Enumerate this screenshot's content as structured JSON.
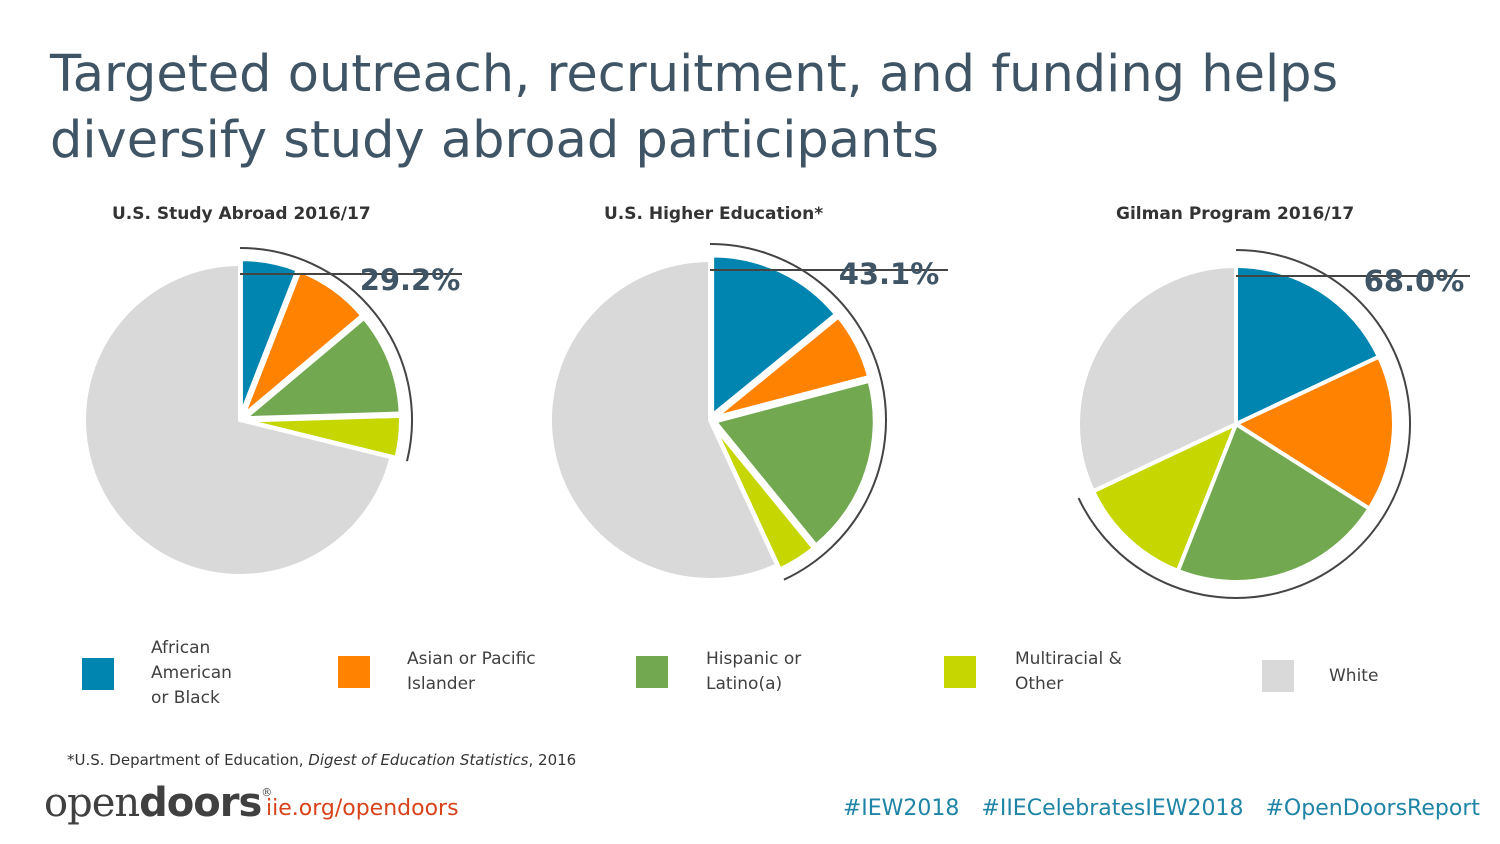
{
  "title": "Targeted outreach, recruitment, and funding helps diversify study abroad participants",
  "colors": {
    "african_american": "#0084b0",
    "asian": "#ff8200",
    "hispanic": "#72a850",
    "multiracial": "#c5d600",
    "white": "#d9d9d9"
  },
  "chart_data": [
    {
      "type": "pie",
      "title": "U.S. Study Abroad 2016/17",
      "callout": "29.2%",
      "categories": [
        "African American or Black",
        "Asian or Pacific Islander",
        "Hispanic or Latino(a)",
        "Multiracial & Other",
        "White"
      ],
      "values": [
        5.9,
        7.9,
        10.6,
        4.3,
        70.8
      ]
    },
    {
      "type": "pie",
      "title": "U.S. Higher Education*",
      "callout": "43.1%",
      "categories": [
        "African American or Black",
        "Asian or Pacific Islander",
        "Hispanic or Latino(a)",
        "Multiracial & Other",
        "White"
      ],
      "values": [
        14.1,
        6.8,
        18.2,
        4.0,
        56.9
      ]
    },
    {
      "type": "pie",
      "title": "Gilman Program 2016/17",
      "callout": "68.0%",
      "categories": [
        "African American or Black",
        "Asian or Pacific Islander",
        "Hispanic or Latino(a)",
        "Multiracial & Other",
        "White"
      ],
      "values": [
        18.0,
        16.0,
        22.0,
        12.0,
        32.0
      ]
    }
  ],
  "legend": [
    {
      "label": "African American or Black",
      "color": "#0084b0"
    },
    {
      "label": "Asian or Pacific Islander",
      "color": "#ff8200"
    },
    {
      "label": "Hispanic or Latino(a)",
      "color": "#72a850"
    },
    {
      "label": "Multiracial & Other",
      "color": "#c5d600"
    },
    {
      "label": "White",
      "color": "#d9d9d9"
    }
  ],
  "footnote": {
    "prefix": "*U.S. Department of Education, ",
    "italic": "Digest of Education Statistics",
    "suffix": ", 2016"
  },
  "footer": {
    "logo_light": "open",
    "logo_bold": "doors",
    "logo_mark": "®",
    "site": "iie.org/opendoors",
    "hashtags": [
      "#IEW2018",
      "#IIECelebratesIEW2018",
      "#OpenDoorsReport"
    ]
  }
}
